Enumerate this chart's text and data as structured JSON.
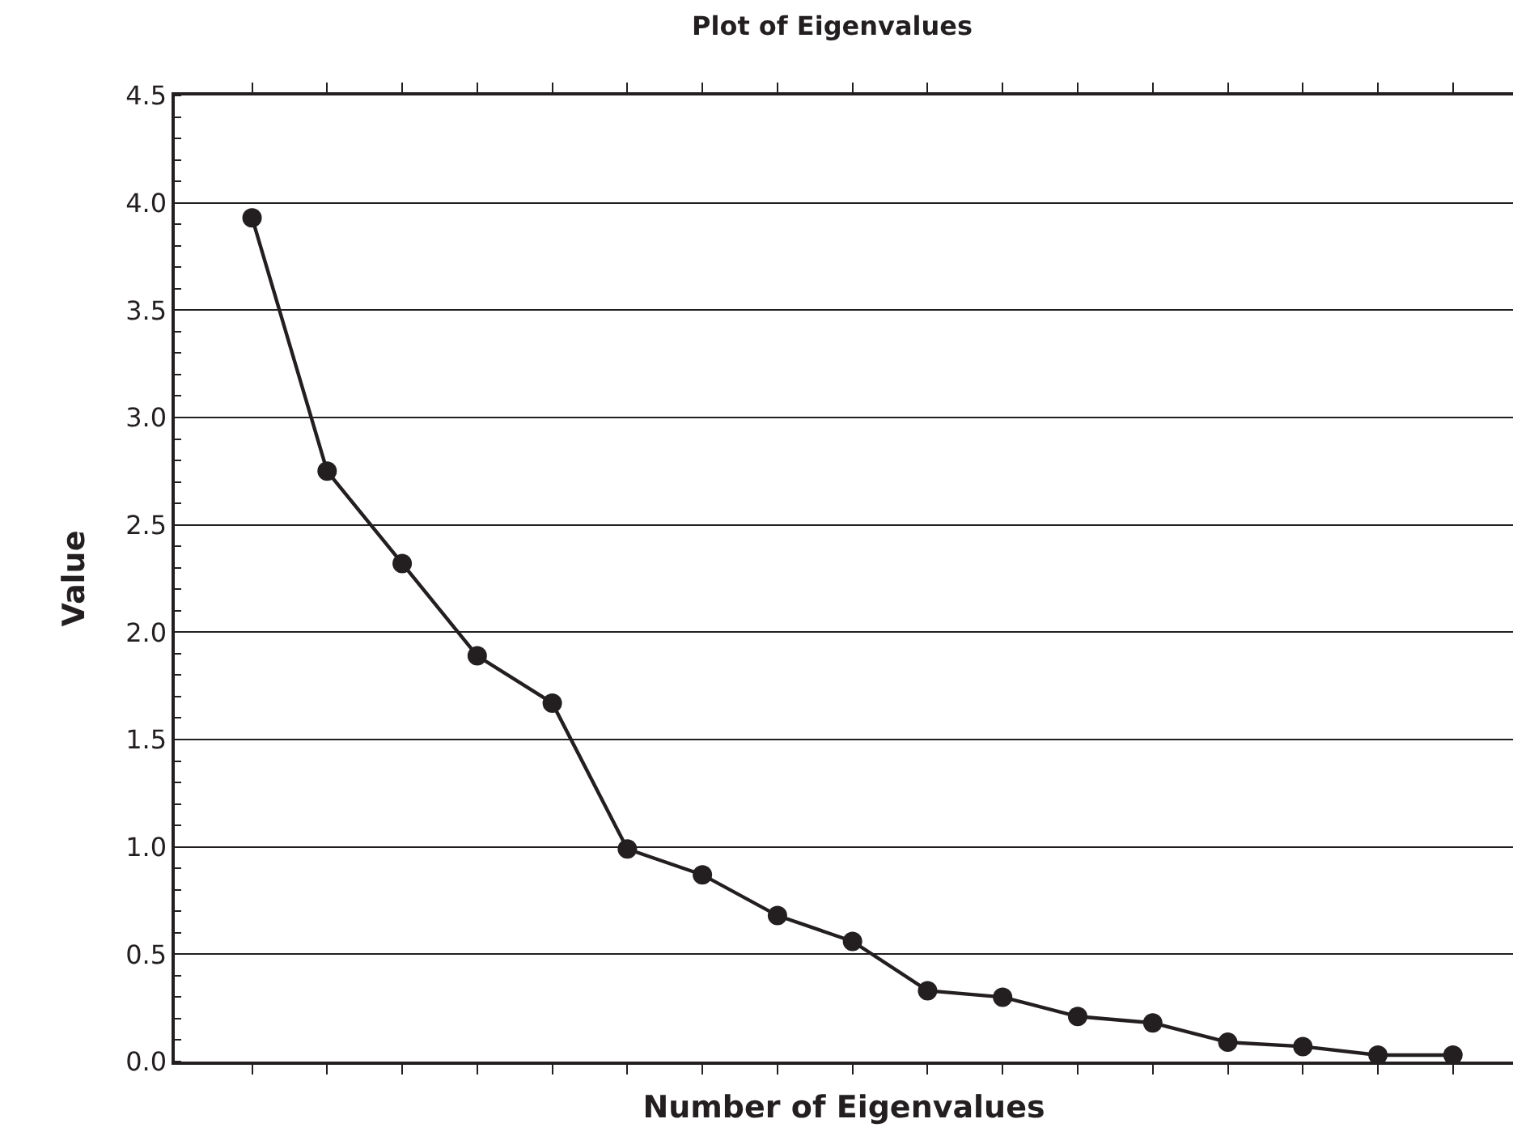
{
  "chart_data": {
    "type": "line",
    "title": "Plot of Eigenvalues",
    "xlabel": "Number of Eigenvalues",
    "ylabel": "Value",
    "categories": [
      null,
      null,
      null,
      null,
      null,
      null,
      null,
      null,
      null,
      null,
      null,
      null,
      null,
      null,
      null,
      null,
      null
    ],
    "series": [
      {
        "color": "#231f20",
        "values": [
          3.93,
          2.75,
          2.32,
          1.89,
          1.67,
          0.99,
          0.87,
          0.68,
          0.56,
          0.33,
          0.3,
          0.21,
          0.18,
          0.09,
          0.07,
          0.03,
          0.03
        ]
      }
    ],
    "ylim": [
      0,
      4.5
    ],
    "yticks": [
      {
        "value": 0,
        "label": "0.0"
      },
      0.5,
      {
        "value": 1,
        "label": "1.0"
      },
      1.5,
      {
        "value": 2,
        "label": "2.0"
      },
      2.5,
      {
        "value": 3,
        "label": "3.0"
      },
      3.5,
      {
        "value": 4,
        "label": "4.0"
      },
      4.5
    ],
    "grid": "y",
    "marker": "circle",
    "line_style": "solid",
    "tick_labels": "y"
  }
}
